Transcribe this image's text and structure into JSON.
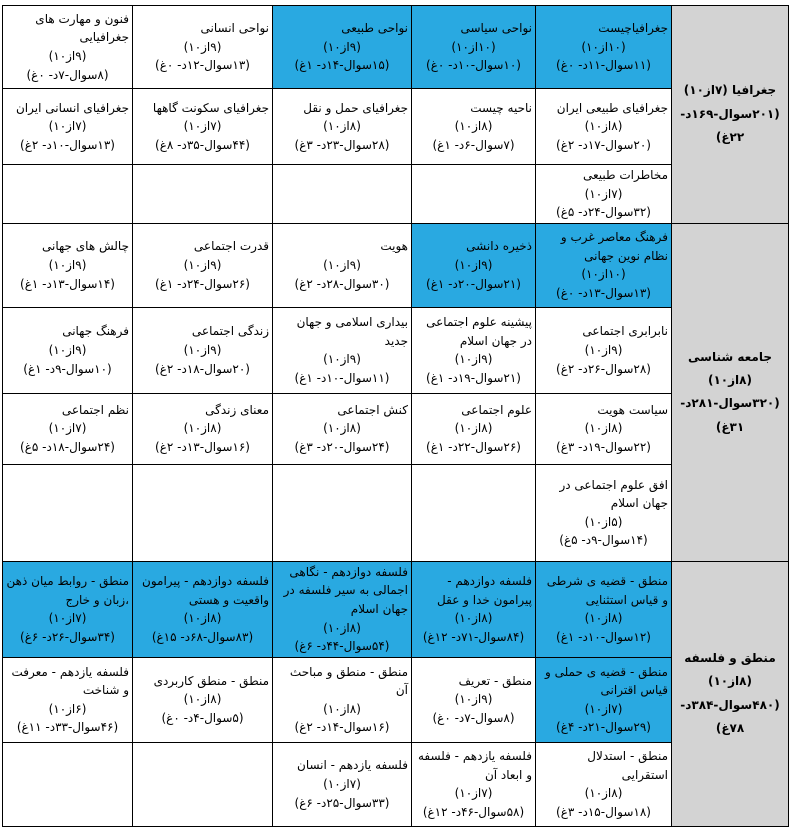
{
  "colors": {
    "highlight_blue": "#29a9e1",
    "section_gray": "#d3d3d3",
    "border": "#000000"
  },
  "sections": [
    {
      "id": "geography",
      "header": {
        "title": "جغرافیا (۷از۱۰)",
        "stats": "(۲۰۱سوال-۱۶۹د-۲۲غ)"
      },
      "rows": [
        {
          "cells": [
            {
              "title": "جغرافیاچیست",
              "score": "(۱۰از۱۰)",
              "stats": "(۱۱سوال-۱۱د- ۰غ)",
              "highlight": true
            },
            {
              "title": "نواحی سیاسی",
              "score": "(۱۰از۱۰)",
              "stats": "(۱۰سوال-۱۰د- ۰غ)",
              "highlight": true
            },
            {
              "title": "نواحی طبیعی",
              "score": "(۹از۱۰)",
              "stats": "(۱۵سوال-۱۴د- ۱غ)",
              "highlight": true
            },
            {
              "title": "نواحی انسانی",
              "score": "(۹از۱۰)",
              "stats": "(۱۳سوال-۱۲د- ۰غ)",
              "highlight": false
            },
            {
              "title": "فنون و مهارت های جغرافیایی",
              "score": "(۹از۱۰)",
              "stats": "(۸سوال-۷د- ۰غ)",
              "highlight": false
            }
          ]
        },
        {
          "cells": [
            {
              "title": "جغرافیای طبیعی ایران",
              "score": "(۸از۱۰)",
              "stats": "(۲۰سوال-۱۷د- ۲غ)",
              "highlight": false
            },
            {
              "title": "ناحیه چیست",
              "score": "(۸از۱۰)",
              "stats": "(۷سوال-۶د- ۱غ)",
              "highlight": false
            },
            {
              "title": "جغرافیای حمل و نقل",
              "score": "(۸از۱۰)",
              "stats": "(۲۸سوال-۲۳د- ۳غ)",
              "highlight": false
            },
            {
              "title": "جغرافیای سکونت گاهها",
              "score": "(۷از۱۰)",
              "stats": "(۴۴سوال-۳۵د- ۸غ)",
              "highlight": false
            },
            {
              "title": "جغرافیای انسانی ایران",
              "score": "(۷از۱۰)",
              "stats": "(۱۳سوال-۱۰د- ۲غ)",
              "highlight": false
            }
          ]
        },
        {
          "cells": [
            {
              "title": "مخاطرات طبیعی",
              "score": "(۷از۱۰)",
              "stats": "(۳۲سوال-۲۴د- ۵غ)",
              "highlight": false
            },
            {
              "empty": true
            },
            {
              "empty": true
            },
            {
              "empty": true
            },
            {
              "empty": true
            }
          ]
        }
      ]
    },
    {
      "id": "sociology",
      "header": {
        "title": "جامعه شناسی (۸از۱۰)",
        "stats": "(۳۲۰سوال-۲۸۱د-۳۱غ)"
      },
      "rows": [
        {
          "cells": [
            {
              "title": "فرهنگ معاصر غرب و نظام نوین جهانی",
              "score": "(۱۰از۱۰)",
              "stats": "(۱۳سوال-۱۳د- ۰غ)",
              "highlight": true
            },
            {
              "title": "ذخیره دانشی",
              "score": "(۹از۱۰)",
              "stats": "(۲۱سوال-۲۰د- ۱غ)",
              "highlight": true
            },
            {
              "title": "هویت",
              "score": "(۹از۱۰)",
              "stats": "(۳۰سوال-۲۸د- ۲غ)",
              "highlight": false
            },
            {
              "title": "قدرت اجتماعی",
              "score": "(۹از۱۰)",
              "stats": "(۲۶سوال-۲۴د- ۱غ)",
              "highlight": false
            },
            {
              "title": "چالش های جهانی",
              "score": "(۹از۱۰)",
              "stats": "(۱۴سوال-۱۳د- ۱غ)",
              "highlight": false
            }
          ]
        },
        {
          "cells": [
            {
              "title": "نابرابری اجتماعی",
              "score": "(۹از۱۰)",
              "stats": "(۲۸سوال-۲۶د- ۲غ)",
              "highlight": false
            },
            {
              "title": "پیشینه علوم اجتماعی در جهان اسلام",
              "score": "(۹از۱۰)",
              "stats": "(۲۱سوال-۱۹د- ۱غ)",
              "highlight": false
            },
            {
              "title": "بیداری اسلامی و جهان جدید",
              "score": "(۹از۱۰)",
              "stats": "(۱۱سوال-۱۰د- ۱غ)",
              "highlight": false
            },
            {
              "title": "زندگی اجتماعی",
              "score": "(۹از۱۰)",
              "stats": "(۲۰سوال-۱۸د- ۲غ)",
              "highlight": false
            },
            {
              "title": "فرهنگ جهانی",
              "score": "(۹از۱۰)",
              "stats": "(۱۰سوال-۹د- ۱غ)",
              "highlight": false
            }
          ]
        },
        {
          "cells": [
            {
              "title": "سیاست هویت",
              "score": "(۸از۱۰)",
              "stats": "(۲۲سوال-۱۹د- ۳غ)",
              "highlight": false
            },
            {
              "title": "علوم اجتماعی",
              "score": "(۸از۱۰)",
              "stats": "(۲۶سوال-۲۲د- ۱غ)",
              "highlight": false
            },
            {
              "title": "کنش اجتماعی",
              "score": "(۸از۱۰)",
              "stats": "(۲۴سوال-۲۰د- ۳غ)",
              "highlight": false
            },
            {
              "title": "معنای زندگی",
              "score": "(۸از۱۰)",
              "stats": "(۱۶سوال-۱۳د- ۲غ)",
              "highlight": false
            },
            {
              "title": "نظم اجتماعی",
              "score": "(۷از۱۰)",
              "stats": "(۲۴سوال-۱۸د- ۵غ)",
              "highlight": false
            }
          ]
        },
        {
          "cells": [
            {
              "title": "افق علوم اجتماعی در جهان اسلام",
              "score": "(۵از۱۰)",
              "stats": "(۱۴سوال-۹د- ۵غ)",
              "highlight": false
            },
            {
              "empty": true
            },
            {
              "empty": true
            },
            {
              "empty": true
            },
            {
              "empty": true
            }
          ]
        }
      ]
    },
    {
      "id": "logic-philosophy",
      "header": {
        "title": "منطق و فلسفه (۸از۱۰)",
        "stats": "(۴۸۰سوال-۳۸۴د-۷۸غ)"
      },
      "rows": [
        {
          "cells": [
            {
              "title": "منطق - قضیه ی شرطی و قیاس استثنایی",
              "score": "(۸از۱۰)",
              "stats": "(۱۲سوال-۱۰د- ۱غ)",
              "highlight": true
            },
            {
              "title": "فلسفه دوازدهم - پیرامون خدا و عقل",
              "score": "(۸از۱۰)",
              "stats": "(۸۴سوال-۷۱د- ۱۲غ)",
              "highlight": true
            },
            {
              "title": "فلسفه دوازدهم - نگاهی اجمالی به سیر فلسفه در جهان اسلام",
              "score": "(۸از۱۰)",
              "stats": "(۵۴سوال-۴۴د- ۶غ)",
              "highlight": true
            },
            {
              "title": "فلسفه دوازدهم - پیرامون واقعیت و هستی",
              "score": "(۸از۱۰)",
              "stats": "(۸۳سوال-۶۸د- ۱۵غ)",
              "highlight": true
            },
            {
              "title": "منطق - روابط میان ذهن ،زبان و خارج",
              "score": "(۷از۱۰)",
              "stats": "(۳۴سوال-۲۶د- ۶غ)",
              "highlight": true
            }
          ]
        },
        {
          "cells": [
            {
              "title": "منطق - قضیه ی حملی و قیاس اقترانی",
              "score": "(۷از۱۰)",
              "stats": "(۲۹سوال-۲۱د- ۴غ)",
              "highlight": true
            },
            {
              "title": "منطق - تعریف",
              "score": "(۹از۱۰)",
              "stats": "(۸سوال-۷د- ۰غ)",
              "highlight": false
            },
            {
              "title": "منطق - منطق و مباحث آن",
              "score": "(۸از۱۰)",
              "stats": "(۱۶سوال-۱۴د- ۲غ)",
              "highlight": false
            },
            {
              "title": "منطق - منطق کاربردی",
              "score": "(۸از۱۰)",
              "stats": "(۵سوال-۴د- ۰غ)",
              "highlight": false
            },
            {
              "title": "فلسفه یازدهم - معرفت و شناخت",
              "score": "(۶از۱۰)",
              "stats": "(۴۶سوال-۳۳د- ۱۱غ)",
              "highlight": false
            }
          ]
        },
        {
          "cells": [
            {
              "title": "منطق - استدلال استقرایی",
              "score": "(۸از۱۰)",
              "stats": "(۱۸سوال-۱۵د- ۳غ)",
              "highlight": false
            },
            {
              "title": "فلسفه یازدهم - فلسفه و ابعاد آن",
              "score": "(۷از۱۰)",
              "stats": "(۵۸سوال-۴۶د- ۱۲غ)",
              "highlight": false
            },
            {
              "title": "فلسفه یازدهم - انسان",
              "score": "(۷از۱۰)",
              "stats": "(۳۳سوال-۲۵د- ۶غ)",
              "highlight": false
            },
            {
              "empty": true
            },
            {
              "empty": true
            }
          ]
        }
      ]
    }
  ]
}
